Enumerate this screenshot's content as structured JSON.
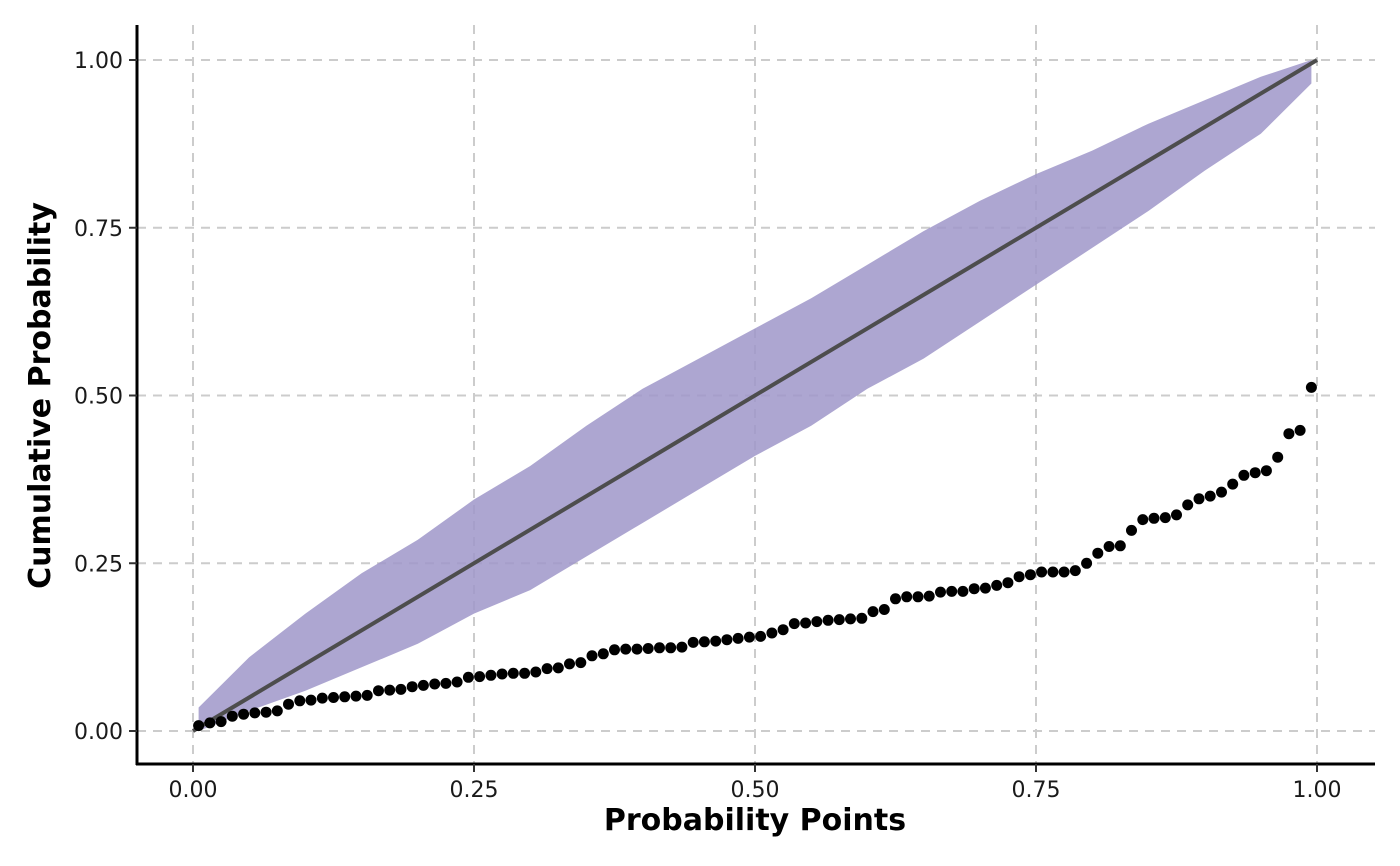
{
  "chart_data": {
    "type": "scatter",
    "xlabel": "Probability Points",
    "ylabel": "Cumulative Probability",
    "xlim": [
      -0.05,
      1.05
    ],
    "ylim": [
      -0.05,
      1.05
    ],
    "x_ticks": [
      0.0,
      0.25,
      0.5,
      0.75,
      1.0
    ],
    "y_ticks": [
      0.0,
      0.25,
      0.5,
      0.75,
      1.0
    ],
    "x_tick_labels": [
      "0.00",
      "0.25",
      "0.50",
      "0.75",
      "1.00"
    ],
    "y_tick_labels": [
      "0.00",
      "0.25",
      "0.50",
      "0.75",
      "1.00"
    ],
    "grid": true,
    "reference_line": {
      "from": [
        0.0,
        0.0
      ],
      "to": [
        1.0,
        1.0
      ],
      "color": "#4d4d4d"
    },
    "confidence_band": {
      "color": "#9f97c9",
      "x": [
        0.005,
        0.05,
        0.1,
        0.15,
        0.2,
        0.25,
        0.3,
        0.35,
        0.4,
        0.45,
        0.5,
        0.55,
        0.6,
        0.65,
        0.7,
        0.75,
        0.8,
        0.85,
        0.9,
        0.95,
        0.995
      ],
      "lower": [
        0.0,
        0.03,
        0.06,
        0.095,
        0.13,
        0.175,
        0.21,
        0.26,
        0.31,
        0.36,
        0.41,
        0.455,
        0.51,
        0.555,
        0.61,
        0.665,
        0.72,
        0.775,
        0.835,
        0.89,
        0.965
      ],
      "upper": [
        0.035,
        0.11,
        0.175,
        0.235,
        0.285,
        0.345,
        0.395,
        0.455,
        0.51,
        0.555,
        0.6,
        0.645,
        0.695,
        0.745,
        0.79,
        0.83,
        0.865,
        0.905,
        0.94,
        0.975,
        1.0
      ]
    },
    "points": {
      "color": "#000000",
      "x": [
        0.005,
        0.015,
        0.025,
        0.035,
        0.045,
        0.055,
        0.065,
        0.075,
        0.085,
        0.095,
        0.105,
        0.115,
        0.125,
        0.135,
        0.145,
        0.155,
        0.165,
        0.175,
        0.185,
        0.195,
        0.205,
        0.215,
        0.225,
        0.235,
        0.245,
        0.255,
        0.265,
        0.275,
        0.285,
        0.295,
        0.305,
        0.315,
        0.325,
        0.335,
        0.345,
        0.355,
        0.365,
        0.375,
        0.385,
        0.395,
        0.405,
        0.415,
        0.425,
        0.435,
        0.445,
        0.455,
        0.465,
        0.475,
        0.485,
        0.495,
        0.505,
        0.515,
        0.525,
        0.535,
        0.545,
        0.555,
        0.565,
        0.575,
        0.585,
        0.595,
        0.605,
        0.615,
        0.625,
        0.635,
        0.645,
        0.655,
        0.665,
        0.675,
        0.685,
        0.695,
        0.705,
        0.715,
        0.725,
        0.735,
        0.745,
        0.755,
        0.765,
        0.775,
        0.785,
        0.795,
        0.805,
        0.815,
        0.825,
        0.835,
        0.845,
        0.855,
        0.865,
        0.875,
        0.885,
        0.895,
        0.905,
        0.915,
        0.925,
        0.935,
        0.945,
        0.955,
        0.965,
        0.975,
        0.985,
        0.995
      ],
      "y": [
        0.008,
        0.012,
        0.014,
        0.022,
        0.025,
        0.027,
        0.028,
        0.03,
        0.04,
        0.045,
        0.046,
        0.049,
        0.05,
        0.051,
        0.052,
        0.053,
        0.06,
        0.061,
        0.062,
        0.066,
        0.068,
        0.07,
        0.071,
        0.073,
        0.08,
        0.081,
        0.083,
        0.085,
        0.086,
        0.086,
        0.088,
        0.093,
        0.094,
        0.1,
        0.102,
        0.112,
        0.115,
        0.121,
        0.122,
        0.122,
        0.123,
        0.124,
        0.124,
        0.125,
        0.132,
        0.133,
        0.134,
        0.136,
        0.138,
        0.14,
        0.141,
        0.146,
        0.151,
        0.16,
        0.161,
        0.163,
        0.165,
        0.166,
        0.167,
        0.168,
        0.178,
        0.181,
        0.197,
        0.2,
        0.2,
        0.201,
        0.207,
        0.208,
        0.208,
        0.212,
        0.213,
        0.217,
        0.221,
        0.23,
        0.233,
        0.237,
        0.237,
        0.237,
        0.239,
        0.25,
        0.265,
        0.275,
        0.276,
        0.299,
        0.315,
        0.317,
        0.318,
        0.322,
        0.337,
        0.346,
        0.35,
        0.356,
        0.368,
        0.381,
        0.385,
        0.388,
        0.408,
        0.443,
        0.448,
        0.512
      ]
    }
  }
}
